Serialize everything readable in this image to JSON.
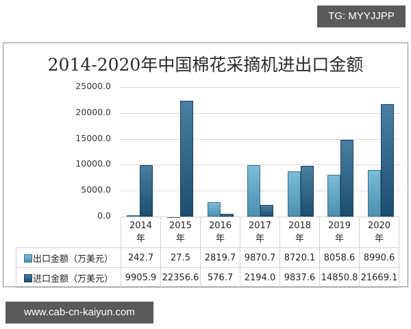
{
  "watermarks": {
    "top_right": "TG: MYYJJPP",
    "bottom_left": "www.cab-cn-kaiyun.com"
  },
  "colors": {
    "export": "#5fa3c5",
    "import": "#2d6186",
    "watermark_bg": "#5a5a5a"
  },
  "chart_data": {
    "type": "bar",
    "title": "2014-2020年中国棉花采摘机进出口金额",
    "xlabel": "",
    "ylabel": "",
    "categories": [
      "2014年",
      "2015年",
      "2016年",
      "2017年",
      "2018年",
      "2019年",
      "2020年"
    ],
    "category_lines": [
      [
        "2014",
        "年"
      ],
      [
        "2015",
        "年"
      ],
      [
        "2016",
        "年"
      ],
      [
        "2017",
        "年"
      ],
      [
        "2018",
        "年"
      ],
      [
        "2019",
        "年"
      ],
      [
        "2020",
        "年"
      ]
    ],
    "series": [
      {
        "name": "出口金额（万美元）",
        "values": [
          242.7,
          27.5,
          2819.7,
          9870.7,
          8720.1,
          8058.6,
          8990.6
        ],
        "display": [
          "242.7",
          "27.5",
          "2819.7",
          "9870.7",
          "8720.1",
          "8058.6",
          "8990.6"
        ]
      },
      {
        "name": "进口金额（万美元）",
        "values": [
          9905.9,
          22356.6,
          576.7,
          2194.0,
          9837.6,
          14850.8,
          21669.1
        ],
        "display": [
          "9905.9",
          "22356.6",
          "576.7",
          "2194.0",
          "9837.6",
          "14850.8",
          "21669.1"
        ]
      }
    ],
    "yticks": [
      "25000.0",
      "20000.0",
      "15000.0",
      "10000.0",
      "5000.0",
      "0.0"
    ],
    "ylim": [
      0,
      25000
    ],
    "grid": true,
    "legend_position": "data-table"
  }
}
